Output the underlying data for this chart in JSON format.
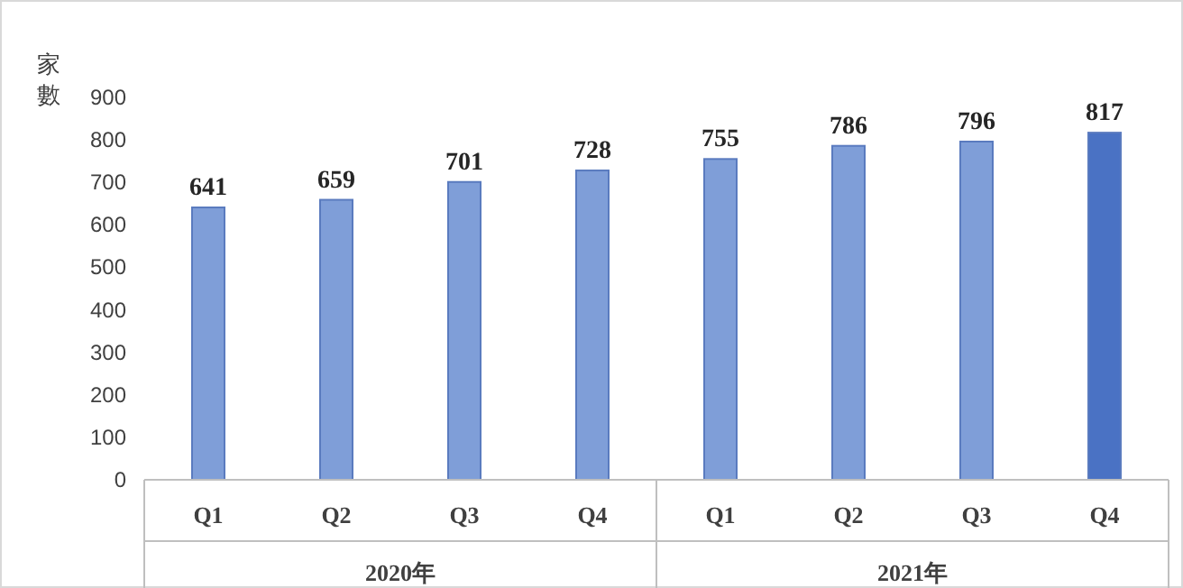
{
  "chart_data": {
    "type": "bar",
    "ylabel": "家數",
    "categories": [
      "Q1",
      "Q2",
      "Q3",
      "Q4",
      "Q1",
      "Q2",
      "Q3",
      "Q4"
    ],
    "values": [
      641,
      659,
      701,
      728,
      755,
      786,
      796,
      817
    ],
    "colors": [
      "#7f9ed8",
      "#7f9ed8",
      "#7f9ed8",
      "#7f9ed8",
      "#7f9ed8",
      "#7f9ed8",
      "#7f9ed8",
      "#4a72c4"
    ],
    "ylim": [
      0,
      900
    ],
    "yticks": [
      0,
      100,
      200,
      300,
      400,
      500,
      600,
      700,
      800,
      900
    ],
    "data_labels": true,
    "annotations": [
      "2020年",
      "2021年"
    ]
  }
}
